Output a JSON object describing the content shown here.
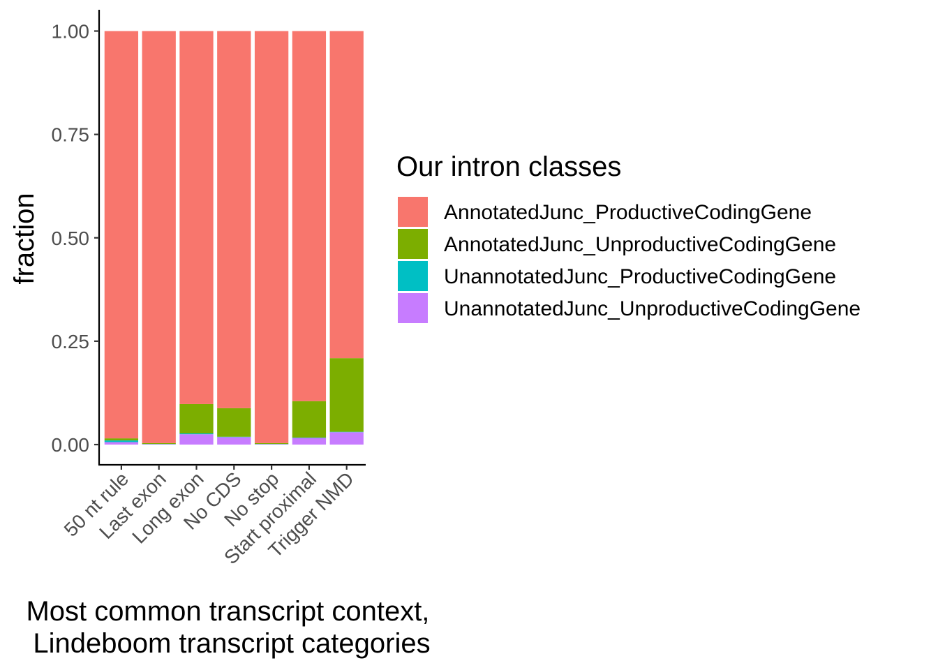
{
  "chart_data": {
    "type": "bar",
    "stacked": true,
    "categories": [
      "50 nt rule",
      "Last exon",
      "Long exon",
      "No CDS",
      "No stop",
      "Start proximal",
      "Trigger NMD"
    ],
    "xlabel": "Most common transcript context,\nLindeboom transcript categories",
    "xlabel_lines": [
      "Most common transcript context,",
      "Lindeboom transcript categories"
    ],
    "ylabel": "fraction",
    "ylim": [
      0,
      1
    ],
    "yticks": [
      0,
      0.25,
      0.5,
      0.75,
      1
    ],
    "ytick_labels": [
      "0.00",
      "0.25",
      "0.50",
      "0.75",
      "1.00"
    ],
    "grid": false,
    "legend_title": "Our intron classes",
    "legend_position": "right",
    "series": [
      {
        "name": "UnannotatedJunc_UnproductiveCodingGene",
        "color": "#C77CFF",
        "values": [
          0.006,
          0.001,
          0.025,
          0.018,
          0.001,
          0.016,
          0.03
        ]
      },
      {
        "name": "UnannotatedJunc_ProductiveCodingGene",
        "color": "#00BFC4",
        "values": [
          0.004,
          0.0005,
          0.002,
          0.001,
          0.0005,
          0.001,
          0.001
        ]
      },
      {
        "name": "AnnotatedJunc_UnproductiveCodingGene",
        "color": "#7CAE00",
        "values": [
          0.005,
          0.002,
          0.071,
          0.069,
          0.002,
          0.088,
          0.178
        ]
      },
      {
        "name": "AnnotatedJunc_ProductiveCodingGene",
        "color": "#F8766D",
        "values": [
          0.985,
          0.9965,
          0.902,
          0.912,
          0.9965,
          0.895,
          0.791
        ]
      }
    ],
    "legend_order": [
      "AnnotatedJunc_ProductiveCodingGene",
      "AnnotatedJunc_UnproductiveCodingGene",
      "UnannotatedJunc_ProductiveCodingGene",
      "UnannotatedJunc_UnproductiveCodingGene"
    ]
  }
}
